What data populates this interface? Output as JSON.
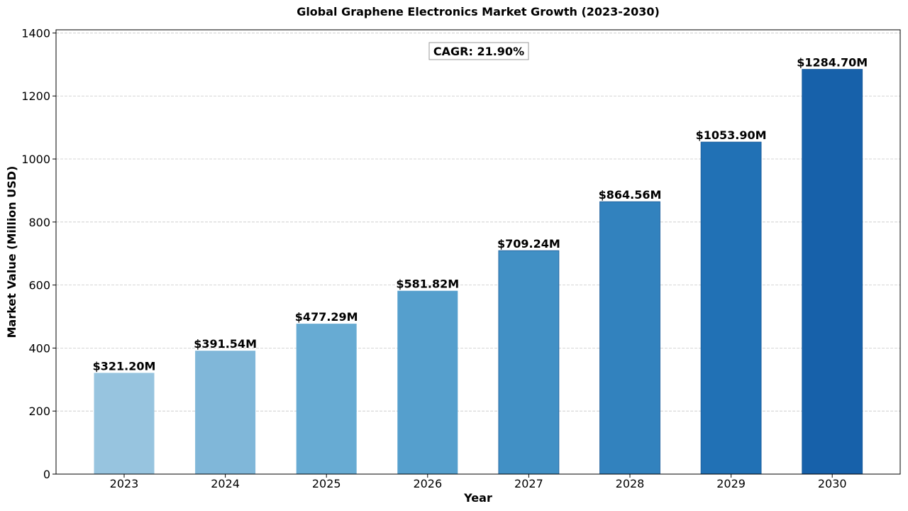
{
  "chart_data": {
    "type": "bar",
    "title": "Global Graphene Electronics Market Growth (2023-2030)",
    "xlabel": "Year",
    "ylabel": "Market Value (Million USD)",
    "categories": [
      "2023",
      "2024",
      "2025",
      "2026",
      "2027",
      "2028",
      "2029",
      "2030"
    ],
    "values": [
      321.2,
      391.54,
      477.29,
      581.82,
      709.24,
      864.56,
      1053.9,
      1284.7
    ],
    "data_labels": [
      "$321.20M",
      "$391.54M",
      "$477.29M",
      "$581.82M",
      "$709.24M",
      "$864.56M",
      "$1053.90M",
      "$1284.70M"
    ],
    "bar_colors": [
      "#97c4df",
      "#80b7d9",
      "#67abd3",
      "#559fcd",
      "#4190c5",
      "#3282be",
      "#2171b5",
      "#1761aa"
    ],
    "ylim": [
      0,
      1410
    ],
    "yticks": [
      0,
      200,
      400,
      600,
      800,
      1000,
      1200,
      1400
    ],
    "grid": true,
    "annotation": "CAGR: 21.90%"
  }
}
